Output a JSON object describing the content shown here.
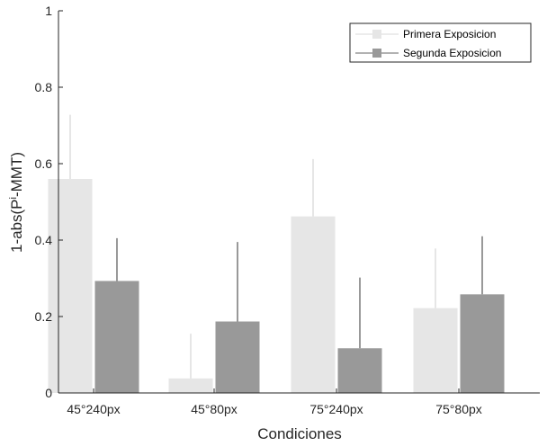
{
  "chart_data": {
    "type": "bar",
    "xlabel": "Condiciones",
    "ylabel": "1-abs(P",
    "ylabel_superscript": "i",
    "ylabel_suffix": "-MMT)",
    "ylim": [
      0,
      1
    ],
    "yticks": [
      "0",
      "0.2",
      "0.4",
      "0.6",
      "0.8",
      "1"
    ],
    "categories": [
      "45°240px",
      "45°80px",
      "75°240px",
      "75°80px"
    ],
    "series": [
      {
        "name": "Primera Exposicion",
        "color": "#e6e6e6",
        "values": [
          0.56,
          0.038,
          0.462,
          0.222
        ],
        "error_upper": [
          0.728,
          0.155,
          0.612,
          0.378
        ]
      },
      {
        "name": "Segunda Exposicion",
        "color": "#999999",
        "values": [
          0.293,
          0.187,
          0.117,
          0.258
        ],
        "error_upper": [
          0.405,
          0.395,
          0.302,
          0.41
        ]
      }
    ],
    "legend_position": "top-right",
    "grid": false
  }
}
